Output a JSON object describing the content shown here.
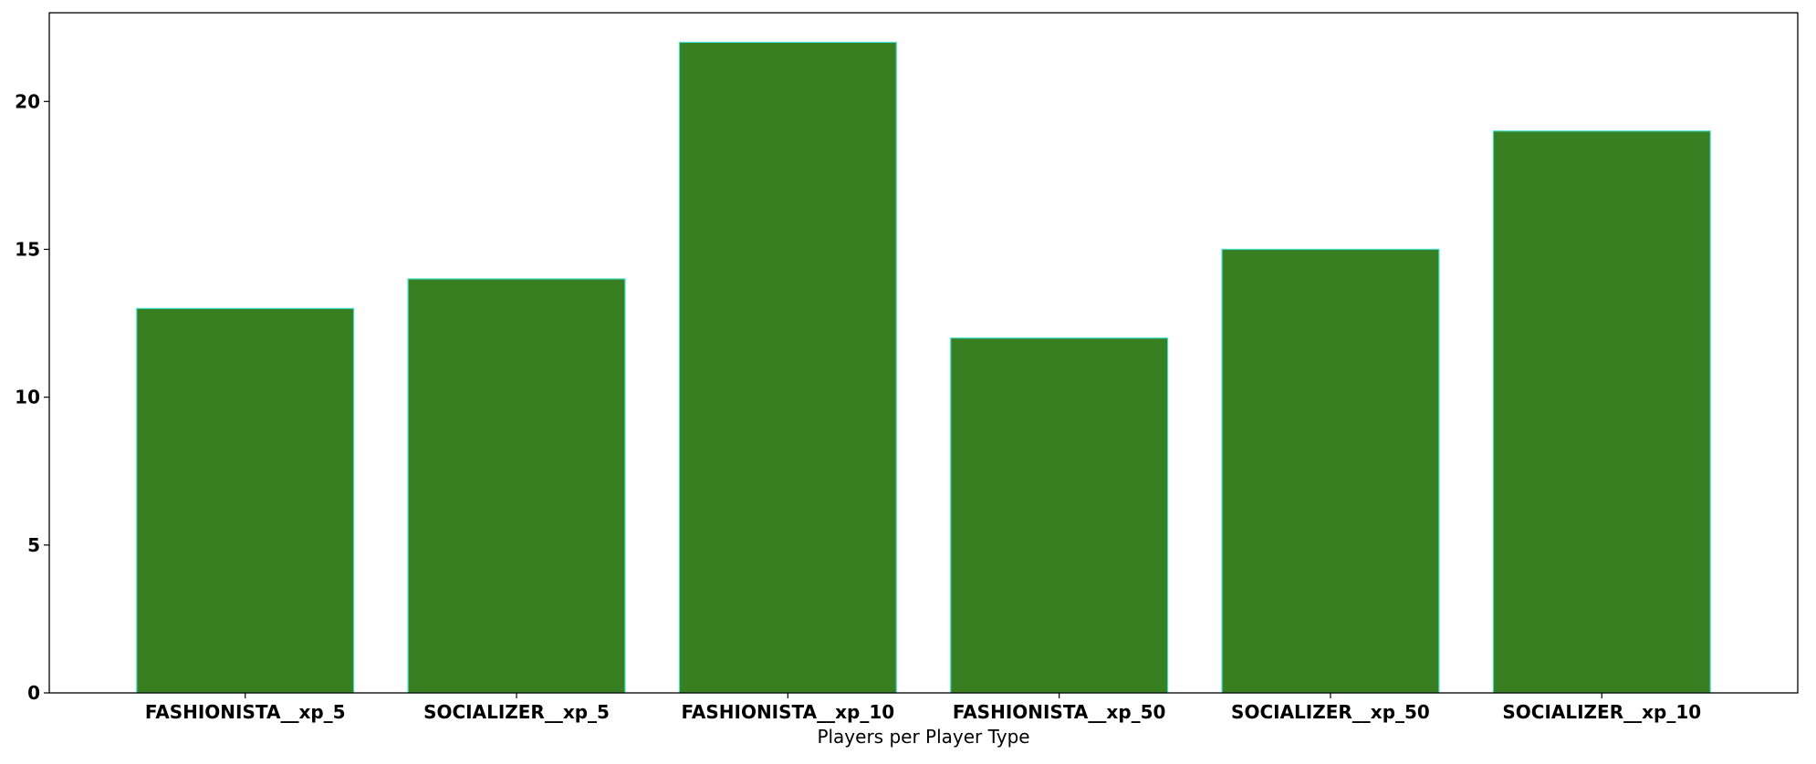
{
  "chart_data": {
    "type": "bar",
    "categories": [
      "FASHIONISTA__xp_5",
      "SOCIALIZER__xp_5",
      "FASHIONISTA__xp_10",
      "FASHIONISTA__xp_50",
      "SOCIALIZER__xp_50",
      "SOCIALIZER__xp_10"
    ],
    "values": [
      13,
      14,
      22,
      12,
      15,
      19
    ],
    "title": "",
    "xlabel": "Players per Player Type",
    "ylabel": "",
    "ylim": [
      0,
      23
    ],
    "yticks": [
      0,
      5,
      10,
      15,
      20
    ],
    "grid": false,
    "colors": {
      "bar_fill": "#387f22",
      "bar_edge": "#40e0d0",
      "axis": "#000000"
    }
  }
}
